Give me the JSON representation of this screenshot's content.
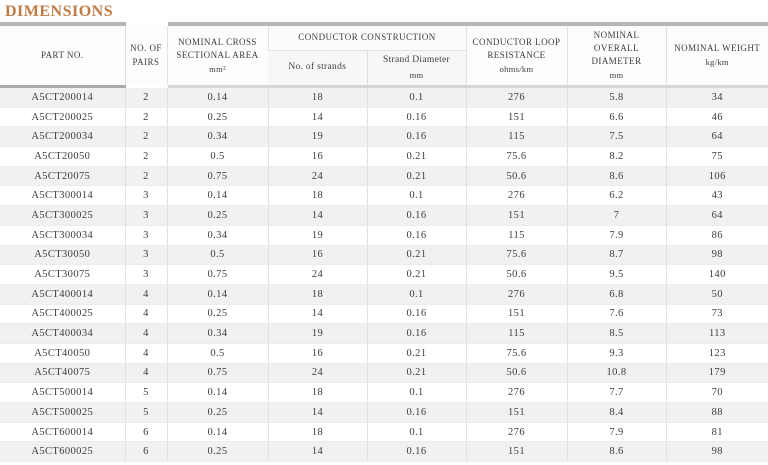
{
  "page": {
    "title": "DIMENSIONS"
  },
  "colors": {
    "accent_title": "#c07b45",
    "row_stripe": "#f1f1f1",
    "header_cap_bar": "#b6b6b6",
    "grid_line": "#e1e1e1"
  },
  "table": {
    "headers": {
      "part_no": "PART NO.",
      "pairs": "NO. OF PAIRS",
      "area_label": "NOMINAL CROSS SECTIONAL AREA",
      "area_unit": "mm²",
      "construction_group": "CONDUCTOR CONSTRUCTION",
      "strands": "No. of strands",
      "strand_dia_label": "Strand Diameter",
      "strand_dia_unit": "mm",
      "resistance_label": "CONDUCTOR LOOP RESISTANCE",
      "resistance_unit": "ohms/km",
      "overall_dia_label": "NOMINAL OVERALL DIAMETER",
      "overall_dia_unit": "mm",
      "weight_label": "NOMINAL WEIGHT",
      "weight_unit": "kg/km"
    },
    "rows": [
      [
        "A5CT200014",
        "2",
        "0.14",
        "18",
        "0.1",
        "276",
        "5.8",
        "34"
      ],
      [
        "A5CT200025",
        "2",
        "0.25",
        "14",
        "0.16",
        "151",
        "6.6",
        "46"
      ],
      [
        "A5CT200034",
        "2",
        "0.34",
        "19",
        "0.16",
        "115",
        "7.5",
        "64"
      ],
      [
        "A5CT20050",
        "2",
        "0.5",
        "16",
        "0.21",
        "75.6",
        "8.2",
        "75"
      ],
      [
        "A5CT20075",
        "2",
        "0.75",
        "24",
        "0.21",
        "50.6",
        "8.6",
        "106"
      ],
      [
        "A5CT300014",
        "3",
        "0.14",
        "18",
        "0.1",
        "276",
        "6.2",
        "43"
      ],
      [
        "A5CT300025",
        "3",
        "0.25",
        "14",
        "0.16",
        "151",
        "7",
        "64"
      ],
      [
        "A5CT300034",
        "3",
        "0.34",
        "19",
        "0.16",
        "115",
        "7.9",
        "86"
      ],
      [
        "A5CT30050",
        "3",
        "0.5",
        "16",
        "0.21",
        "75.6",
        "8.7",
        "98"
      ],
      [
        "A5CT30075",
        "3",
        "0.75",
        "24",
        "0.21",
        "50.6",
        "9.5",
        "140"
      ],
      [
        "A5CT400014",
        "4",
        "0.14",
        "18",
        "0.1",
        "276",
        "6.8",
        "50"
      ],
      [
        "A5CT400025",
        "4",
        "0.25",
        "14",
        "0.16",
        "151",
        "7.6",
        "73"
      ],
      [
        "A5CT400034",
        "4",
        "0.34",
        "19",
        "0.16",
        "115",
        "8.5",
        "113"
      ],
      [
        "A5CT40050",
        "4",
        "0.5",
        "16",
        "0.21",
        "75.6",
        "9.3",
        "123"
      ],
      [
        "A5CT40075",
        "4",
        "0.75",
        "24",
        "0.21",
        "50.6",
        "10.8",
        "179"
      ],
      [
        "A5CT500014",
        "5",
        "0.14",
        "18",
        "0.1",
        "276",
        "7.7",
        "70"
      ],
      [
        "A5CT500025",
        "5",
        "0.25",
        "14",
        "0.16",
        "151",
        "8.4",
        "88"
      ],
      [
        "A5CT600014",
        "6",
        "0.14",
        "18",
        "0.1",
        "276",
        "7.9",
        "81"
      ],
      [
        "A5CT600025",
        "6",
        "0.25",
        "14",
        "0.16",
        "151",
        "8.6",
        "98"
      ]
    ]
  }
}
